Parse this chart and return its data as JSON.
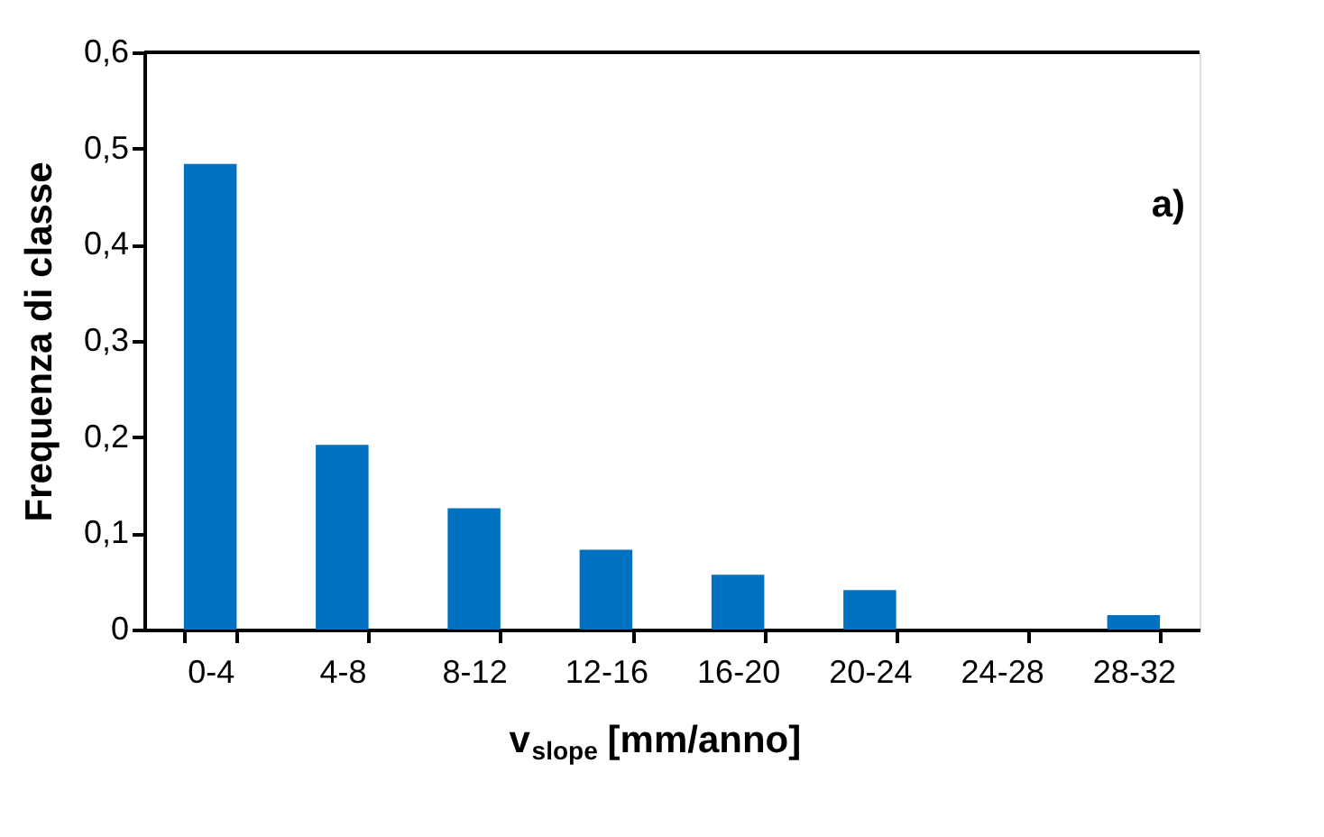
{
  "chart_data": {
    "type": "bar",
    "categories": [
      "0-4",
      "4-8",
      "8-12",
      "12-16",
      "16-20",
      "20-24",
      "24-28",
      "28-32"
    ],
    "values": [
      0.484,
      0.192,
      0.126,
      0.083,
      0.057,
      0.041,
      0,
      0.015
    ],
    "color": "#0070c0",
    "xlabel": "v$_{slope}$ [mm/anno]",
    "ylabel": "Frequenza di classe",
    "annotations": [
      "a)"
    ],
    "ylim": [
      0,
      0.6
    ],
    "yticks": [
      0,
      {
        "value": 0.1,
        "label": "0,1"
      },
      {
        "value": 0.2,
        "label": "0,2"
      },
      {
        "value": 0.3,
        "label": "0,3"
      },
      {
        "value": 0.4,
        "label": "0,4"
      },
      {
        "value": 0.5,
        "label": "0,5"
      },
      {
        "value": 0.6,
        "label": "0,6"
      }
    ],
    "grid": false
  }
}
